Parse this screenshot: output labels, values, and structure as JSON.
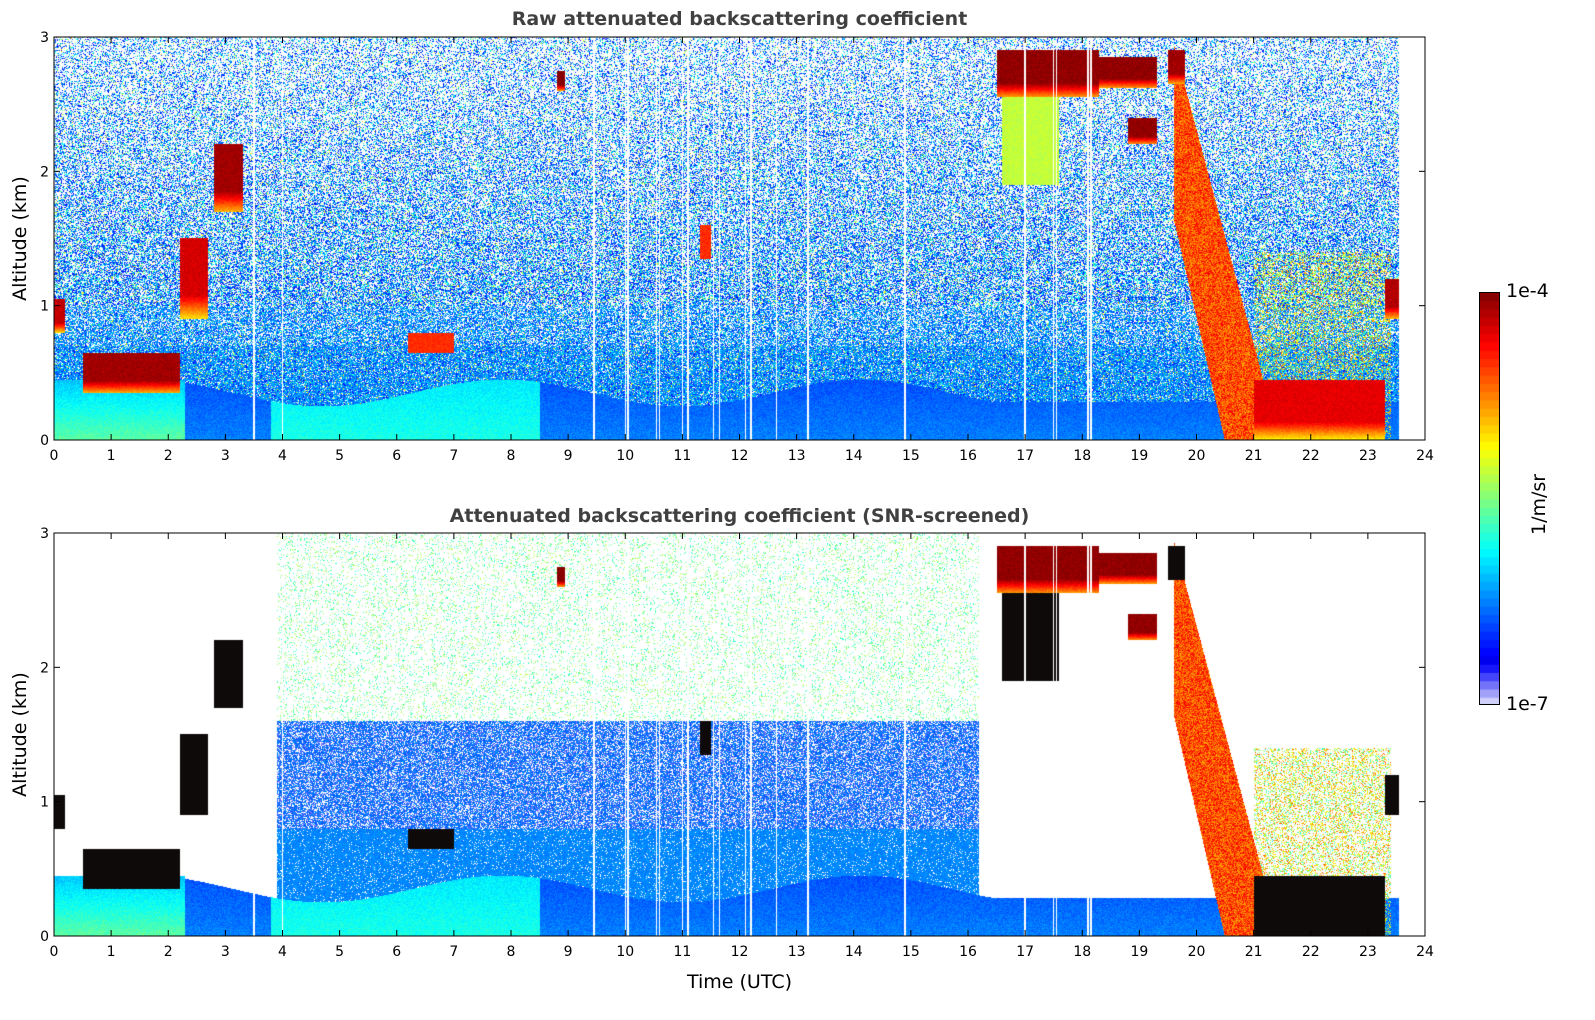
{
  "chart_data": [
    {
      "type": "heatmap",
      "title": "Raw attenuated backscattering coefficient",
      "xlabel": "",
      "ylabel": "Altitude (km)",
      "xlim": [
        0,
        24
      ],
      "ylim": [
        0,
        3
      ],
      "xticks": [
        0,
        1,
        2,
        3,
        4,
        5,
        6,
        7,
        8,
        9,
        10,
        11,
        12,
        13,
        14,
        15,
        16,
        17,
        18,
        19,
        20,
        21,
        22,
        23,
        24
      ],
      "yticks": [
        0,
        1,
        2,
        3
      ],
      "screened": false
    },
    {
      "type": "heatmap",
      "title": "Attenuated backscattering coefficient (SNR-screened)",
      "xlabel": "Time (UTC)",
      "ylabel": "Altitude (km)",
      "xlim": [
        0,
        24
      ],
      "ylim": [
        0,
        3
      ],
      "xticks": [
        0,
        1,
        2,
        3,
        4,
        5,
        6,
        7,
        8,
        9,
        10,
        11,
        12,
        13,
        14,
        15,
        16,
        17,
        18,
        19,
        20,
        21,
        22,
        23,
        24
      ],
      "yticks": [
        0,
        1,
        2,
        3
      ],
      "screened": true
    }
  ],
  "colorbar": {
    "label": "1/m/sr",
    "min_label": "1e-7",
    "max_label": "1e-4",
    "log_min": -7,
    "log_max": -4,
    "colormap": "jet"
  },
  "data_end_time": 23.55,
  "features": [
    {
      "t": [
        0.5,
        2.2
      ],
      "z": [
        0.35,
        0.65
      ],
      "v": -4.1
    },
    {
      "t": [
        0.0,
        0.2
      ],
      "z": [
        0.8,
        1.05
      ],
      "v": -4.2
    },
    {
      "t": [
        2.2,
        2.7
      ],
      "z": [
        0.9,
        1.5
      ],
      "v": -4.25
    },
    {
      "t": [
        2.8,
        3.3
      ],
      "z": [
        1.7,
        2.2
      ],
      "v": -4.1
    },
    {
      "t": [
        8.8,
        8.95
      ],
      "z": [
        2.6,
        2.75
      ],
      "v": -4.0
    },
    {
      "t": [
        6.2,
        7.0
      ],
      "z": [
        0.65,
        0.8
      ],
      "v": -4.5
    },
    {
      "t": [
        11.3,
        11.5
      ],
      "z": [
        1.35,
        1.6
      ],
      "v": -4.5
    },
    {
      "t": [
        16.5,
        18.3
      ],
      "z": [
        2.55,
        2.9
      ],
      "v": -4.05
    },
    {
      "t": [
        18.3,
        19.3
      ],
      "z": [
        2.62,
        2.85
      ],
      "v": -4.05
    },
    {
      "t": [
        18.8,
        19.3
      ],
      "z": [
        2.2,
        2.4
      ],
      "v": -4.05
    },
    {
      "t": [
        19.5,
        19.8
      ],
      "z": [
        2.65,
        2.9
      ],
      "v": -4.1
    },
    {
      "t": [
        21.0,
        23.3
      ],
      "z": [
        0.0,
        0.45
      ],
      "v": -4.3
    },
    {
      "t": [
        23.3,
        23.55
      ],
      "z": [
        0.9,
        1.2
      ],
      "v": -4.15
    },
    {
      "t": [
        16.6,
        17.6
      ],
      "z": [
        1.9,
        2.6
      ],
      "v": -5.3
    }
  ],
  "fall_streak": {
    "t": [
      19.6,
      21.2
    ],
    "z_top": [
      2.85,
      0.3
    ],
    "v": -4.6
  },
  "gaps": [
    3.5,
    4.0,
    9.45,
    10.0,
    10.05,
    10.55,
    10.6,
    11.0,
    11.1,
    11.55,
    11.65,
    12.1,
    12.2,
    12.65,
    13.2,
    14.9,
    17.0,
    17.5,
    17.55,
    18.1,
    18.15
  ]
}
